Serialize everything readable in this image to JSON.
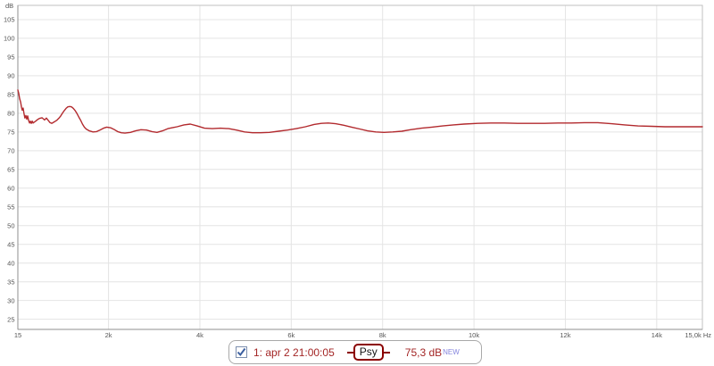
{
  "chart_data": {
    "type": "line",
    "title": "",
    "y_axis": {
      "unit": "dB",
      "range_min": 22.3,
      "range_max": 108.8,
      "tick_start": 25,
      "tick_end": 105,
      "tick_step": 5
    },
    "x_axis": {
      "unit": "Hz",
      "min_hz": 15,
      "max_hz": 15000,
      "label_start": "15",
      "label_end": "15,0k Hz",
      "ticks": [
        {
          "hz": 2000,
          "label": "2k"
        },
        {
          "hz": 4000,
          "label": "4k"
        },
        {
          "hz": 6000,
          "label": "6k"
        },
        {
          "hz": 8000,
          "label": "8k"
        },
        {
          "hz": 10000,
          "label": "10k"
        },
        {
          "hz": 12000,
          "label": "12k"
        },
        {
          "hz": 14000,
          "label": "14k"
        }
      ]
    },
    "grid": true,
    "legend_position": "bottom-center",
    "series": [
      {
        "name": "1: apr 2 21:00:05",
        "smoothing": "Psy",
        "color": "#b22a2e",
        "points": [
          [
            15,
            86.2
          ],
          [
            35,
            85.3
          ],
          [
            55,
            83.9
          ],
          [
            75,
            83.0
          ],
          [
            95,
            81.6
          ],
          [
            110,
            80.8
          ],
          [
            130,
            81.4
          ],
          [
            150,
            79.9
          ],
          [
            170,
            78.7
          ],
          [
            190,
            79.4
          ],
          [
            210,
            78.4
          ],
          [
            230,
            79.3
          ],
          [
            250,
            78.1
          ],
          [
            270,
            77.4
          ],
          [
            290,
            77.9
          ],
          [
            310,
            77.3
          ],
          [
            330,
            77.9
          ],
          [
            350,
            77.4
          ],
          [
            370,
            77.6
          ],
          [
            405,
            77.9
          ],
          [
            445,
            78.3
          ],
          [
            485,
            78.6
          ],
          [
            545,
            78.8
          ],
          [
            600,
            78.2
          ],
          [
            640,
            78.7
          ],
          [
            680,
            78.1
          ],
          [
            720,
            77.5
          ],
          [
            760,
            77.3
          ],
          [
            800,
            77.6
          ],
          [
            840,
            77.9
          ],
          [
            875,
            78.2
          ],
          [
            915,
            78.7
          ],
          [
            955,
            79.3
          ],
          [
            990,
            80.0
          ],
          [
            1030,
            80.7
          ],
          [
            1070,
            81.3
          ],
          [
            1110,
            81.7
          ],
          [
            1150,
            81.8
          ],
          [
            1190,
            81.7
          ],
          [
            1230,
            81.3
          ],
          [
            1270,
            80.7
          ],
          [
            1310,
            79.9
          ],
          [
            1350,
            79.0
          ],
          [
            1390,
            78.1
          ],
          [
            1430,
            77.1
          ],
          [
            1470,
            76.3
          ],
          [
            1510,
            75.8
          ],
          [
            1580,
            75.3
          ],
          [
            1660,
            75.0
          ],
          [
            1740,
            75.1
          ],
          [
            1810,
            75.5
          ],
          [
            1890,
            76.0
          ],
          [
            1960,
            76.3
          ],
          [
            2050,
            76.1
          ],
          [
            2130,
            75.6
          ],
          [
            2200,
            75.1
          ],
          [
            2280,
            74.8
          ],
          [
            2360,
            74.7
          ],
          [
            2480,
            74.9
          ],
          [
            2590,
            75.3
          ],
          [
            2710,
            75.6
          ],
          [
            2830,
            75.5
          ],
          [
            2950,
            75.1
          ],
          [
            3060,
            74.9
          ],
          [
            3180,
            75.3
          ],
          [
            3300,
            75.9
          ],
          [
            3420,
            76.2
          ],
          [
            3500,
            76.4
          ],
          [
            3650,
            76.9
          ],
          [
            3790,
            77.1
          ],
          [
            3940,
            76.6
          ],
          [
            4100,
            76.0
          ],
          [
            4270,
            75.9
          ],
          [
            4450,
            76.0
          ],
          [
            4630,
            75.9
          ],
          [
            4800,
            75.5
          ],
          [
            4980,
            75.0
          ],
          [
            5150,
            74.8
          ],
          [
            5330,
            74.8
          ],
          [
            5520,
            74.9
          ],
          [
            5720,
            75.2
          ],
          [
            5920,
            75.5
          ],
          [
            6110,
            75.9
          ],
          [
            6310,
            76.4
          ],
          [
            6500,
            77.0
          ],
          [
            6660,
            77.3
          ],
          [
            6810,
            77.4
          ],
          [
            6970,
            77.2
          ],
          [
            7150,
            76.8
          ],
          [
            7320,
            76.3
          ],
          [
            7500,
            75.8
          ],
          [
            7670,
            75.3
          ],
          [
            7850,
            75.0
          ],
          [
            8030,
            74.9
          ],
          [
            8220,
            75.0
          ],
          [
            8420,
            75.2
          ],
          [
            8610,
            75.6
          ],
          [
            8850,
            76.0
          ],
          [
            9080,
            76.3
          ],
          [
            9310,
            76.6
          ],
          [
            9550,
            76.9
          ],
          [
            9780,
            77.1
          ],
          [
            10080,
            77.3
          ],
          [
            10370,
            77.4
          ],
          [
            10660,
            77.4
          ],
          [
            10960,
            77.3
          ],
          [
            11250,
            77.3
          ],
          [
            11540,
            77.3
          ],
          [
            11840,
            77.4
          ],
          [
            12130,
            77.4
          ],
          [
            12420,
            77.5
          ],
          [
            12710,
            77.5
          ],
          [
            13010,
            77.2
          ],
          [
            13300,
            76.9
          ],
          [
            13590,
            76.6
          ],
          [
            13890,
            76.5
          ],
          [
            14180,
            76.4
          ],
          [
            14470,
            76.4
          ],
          [
            14770,
            76.4
          ],
          [
            15000,
            76.4
          ]
        ]
      }
    ]
  },
  "legend": {
    "checkbox_checked": true,
    "trace_label": "1: apr 2 21:00:05",
    "smoothing_badge": "Psy",
    "value": "75,3 dB",
    "flag": "NEW",
    "colors": {
      "text": "#a32525",
      "badge_border": "#8b0000",
      "flag": "#8585de",
      "grid": "#e4e4e4",
      "border": "#c2c2c2",
      "axis": "#8f8f8f",
      "tick_text": "#555555"
    }
  }
}
